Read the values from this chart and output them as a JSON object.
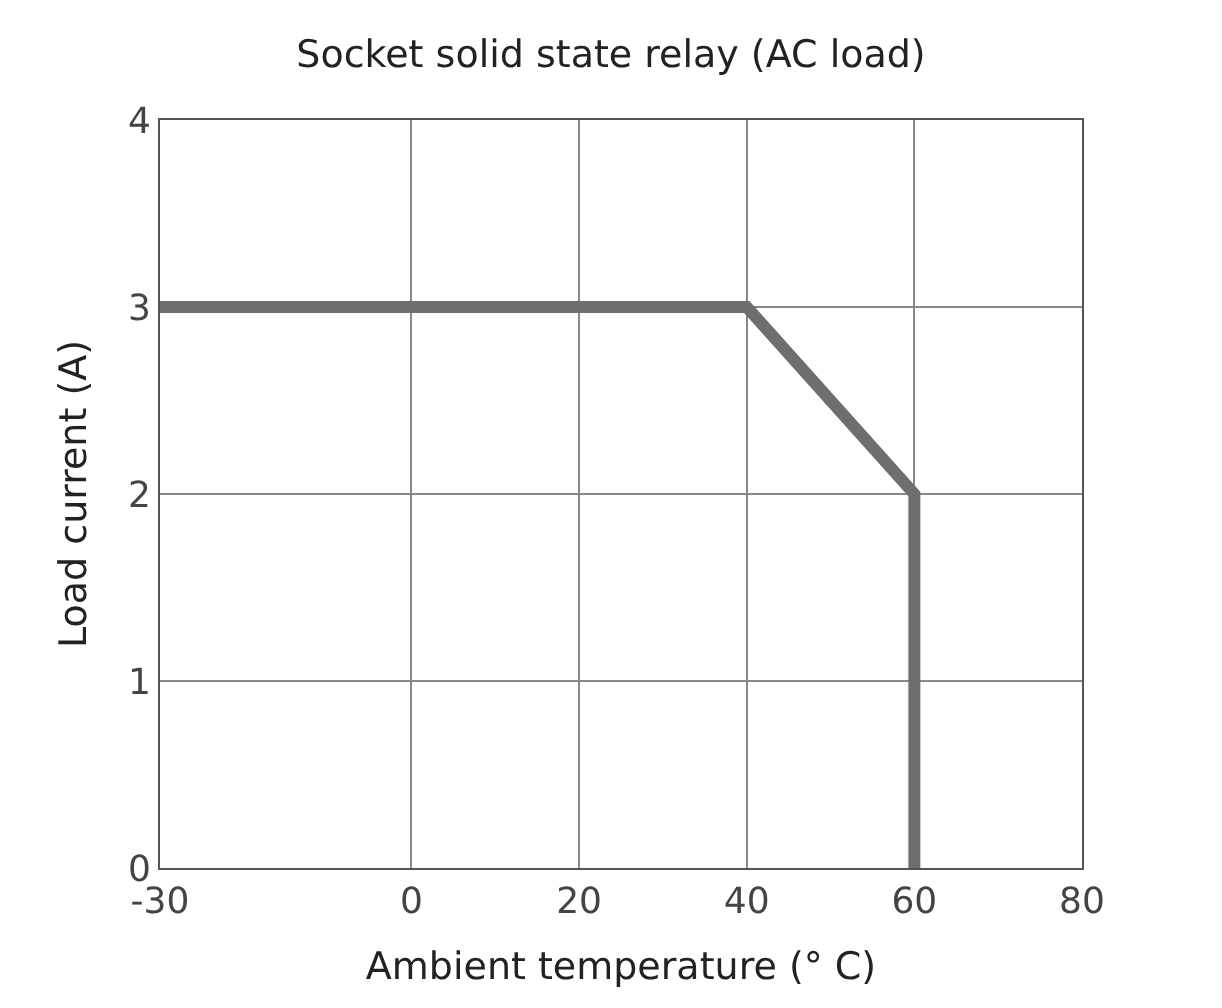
{
  "chart_data": {
    "type": "line",
    "title": "Socket solid state relay (AC load)",
    "xlabel": "Ambient temperature (° C)",
    "ylabel": "Load current (A)",
    "x": [
      -30,
      40,
      60,
      60
    ],
    "series": [
      {
        "color": "#6e6e6e",
        "values": [
          3,
          3,
          2,
          0
        ]
      }
    ],
    "xlim": [
      -30,
      80
    ],
    "xticks": [
      -30,
      0,
      20,
      40,
      60,
      80
    ],
    "ylim": [
      0,
      4
    ],
    "yticks": [
      0,
      1,
      2,
      3,
      4
    ],
    "grid": true,
    "legend": false,
    "marker": "none",
    "line_style": "solid"
  }
}
